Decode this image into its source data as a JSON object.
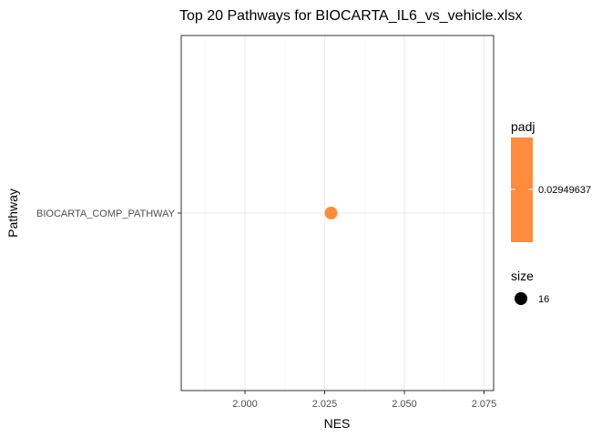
{
  "chart_data": {
    "type": "scatter",
    "title": "Top 20 Pathways for  BIOCARTA_IL6_vs_vehicle.xlsx",
    "xlabel": "NES",
    "ylabel": "Pathway",
    "xlim": [
      1.98,
      2.078
    ],
    "x_ticks": [
      2.0,
      2.025,
      2.05,
      2.075
    ],
    "x_tick_labels": [
      "2.000",
      "2.025",
      "2.050",
      "2.075"
    ],
    "categories": [
      "BIOCARTA_COMP_PATHWAY"
    ],
    "points": [
      {
        "pathway": "BIOCARTA_COMP_PATHWAY",
        "nes": 2.027,
        "padj": 0.02949637,
        "size": 16,
        "color": "#ff8c3c"
      }
    ],
    "grid": true,
    "legend": {
      "placement": "right",
      "color_title": "padj",
      "color_value_label": "0.02949637",
      "color_fill": "#ff8c3c",
      "size_title": "size",
      "size_value_label": "16"
    }
  }
}
